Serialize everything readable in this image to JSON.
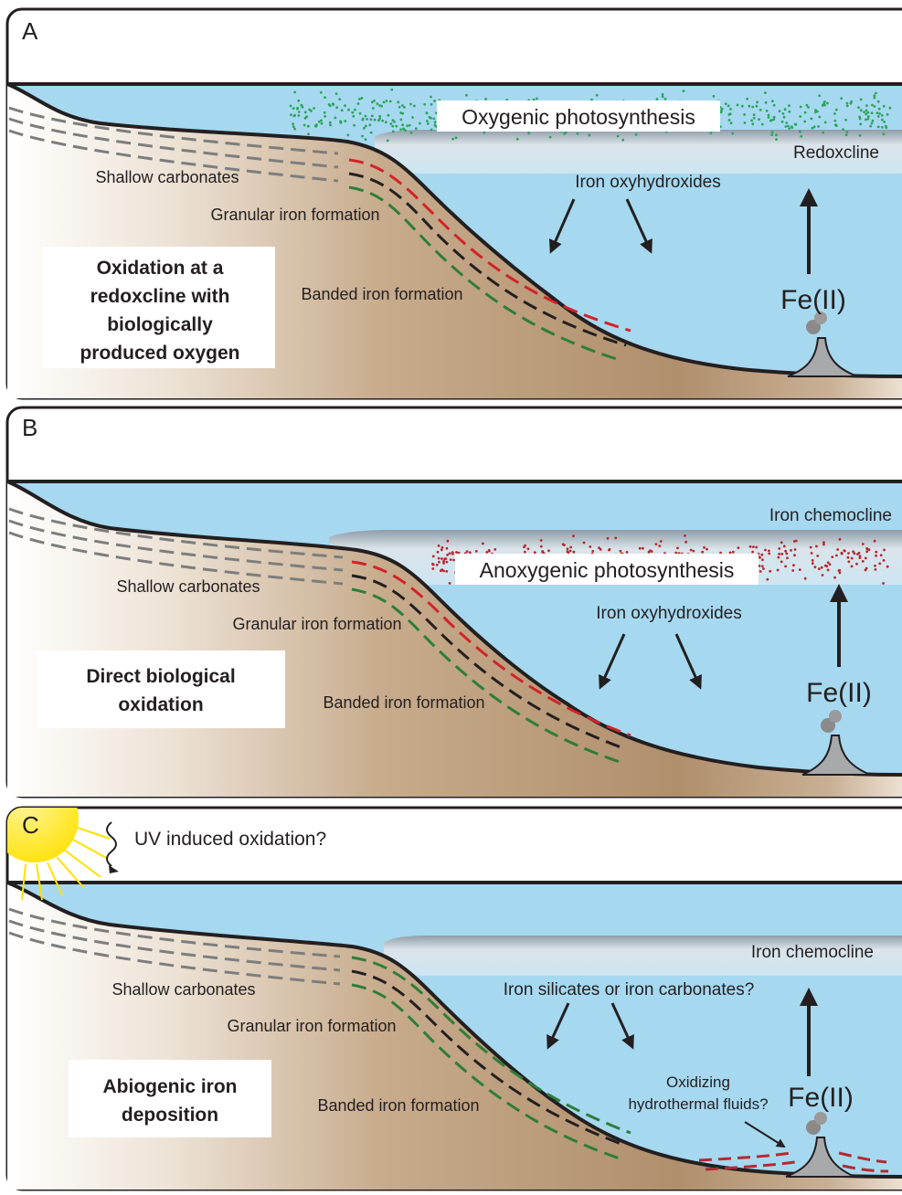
{
  "panels": [
    {
      "letter": "A",
      "process_label": "Oxygenic photosynthesis",
      "boundary_label": "Redoxcline",
      "products_label": "Iron oxyhydroxides",
      "source_label": "Fe(II)",
      "shelf_label": "Shallow carbonates",
      "granular_label": "Granular iron formation",
      "banded_label": "Banded iron formation",
      "mechanism_lines": [
        "Oxidation at a",
        "redoxcline with",
        "biologically",
        "produced oxygen"
      ]
    },
    {
      "letter": "B",
      "process_label": "Anoxygenic photosynthesis",
      "boundary_label": "Iron chemocline",
      "products_label": "Iron oxyhydroxides",
      "source_label": "Fe(II)",
      "shelf_label": "Shallow carbonates",
      "granular_label": "Granular iron formation",
      "banded_label": "Banded iron formation",
      "mechanism_lines": [
        "Direct biological",
        "oxidation"
      ]
    },
    {
      "letter": "C",
      "uv_label": "UV induced oxidation?",
      "boundary_label": "Iron chemocline",
      "products_label": "Iron silicates or iron carbonates?",
      "vent_fluid_lines": [
        "Oxidizing",
        "hydrothermal fluids?"
      ],
      "source_label": "Fe(II)",
      "shelf_label": "Shallow carbonates",
      "granular_label": "Granular iron formation",
      "banded_label": "Banded iron formation",
      "mechanism_lines": [
        "Abiogenic iron",
        "deposition"
      ]
    }
  ],
  "colors": {
    "ocean": "#a6d8f0",
    "sediment": "#b89a78",
    "oxygenic_cells": "#2aa55a",
    "anoxygenic_cells": "#b5282e",
    "sun": "#ffe600",
    "iron_layer_red": "#d2232a",
    "iron_layer_green": "#2e7d3a",
    "iron_layer_black": "#231f20",
    "carbonate_layer_gray": "#7d7d7d"
  }
}
